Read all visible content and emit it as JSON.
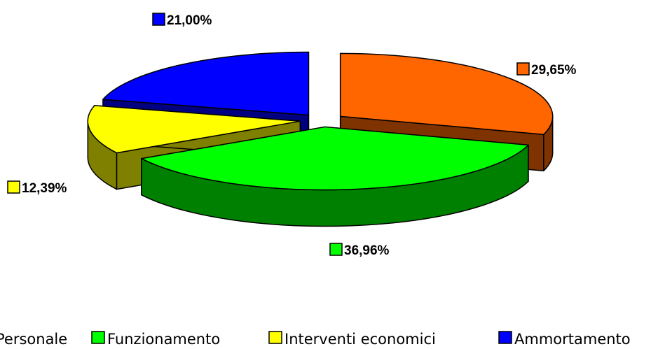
{
  "chart_data": {
    "type": "pie",
    "title": "",
    "style": "3d-exploded",
    "legend_position": "bottom",
    "slices": [
      {
        "name": "Personale",
        "label": "29,65%",
        "value": 29.65,
        "color": "#ff6600",
        "side_color": "#7f3300"
      },
      {
        "name": "Funzionamento",
        "label": "36,96%",
        "value": 36.96,
        "color": "#00ff00",
        "side_color": "#008000"
      },
      {
        "name": "Interventi economici",
        "label": "12,39%",
        "value": 12.39,
        "color": "#ffff00",
        "side_color": "#808000"
      },
      {
        "name": "Ammortamento",
        "label": "21,00%",
        "value": 21.0,
        "color": "#0000ff",
        "side_color": "#000080"
      }
    ],
    "legend": [
      "Personale",
      "Funzionamento",
      "Interventi economici",
      "Ammortamento"
    ]
  }
}
